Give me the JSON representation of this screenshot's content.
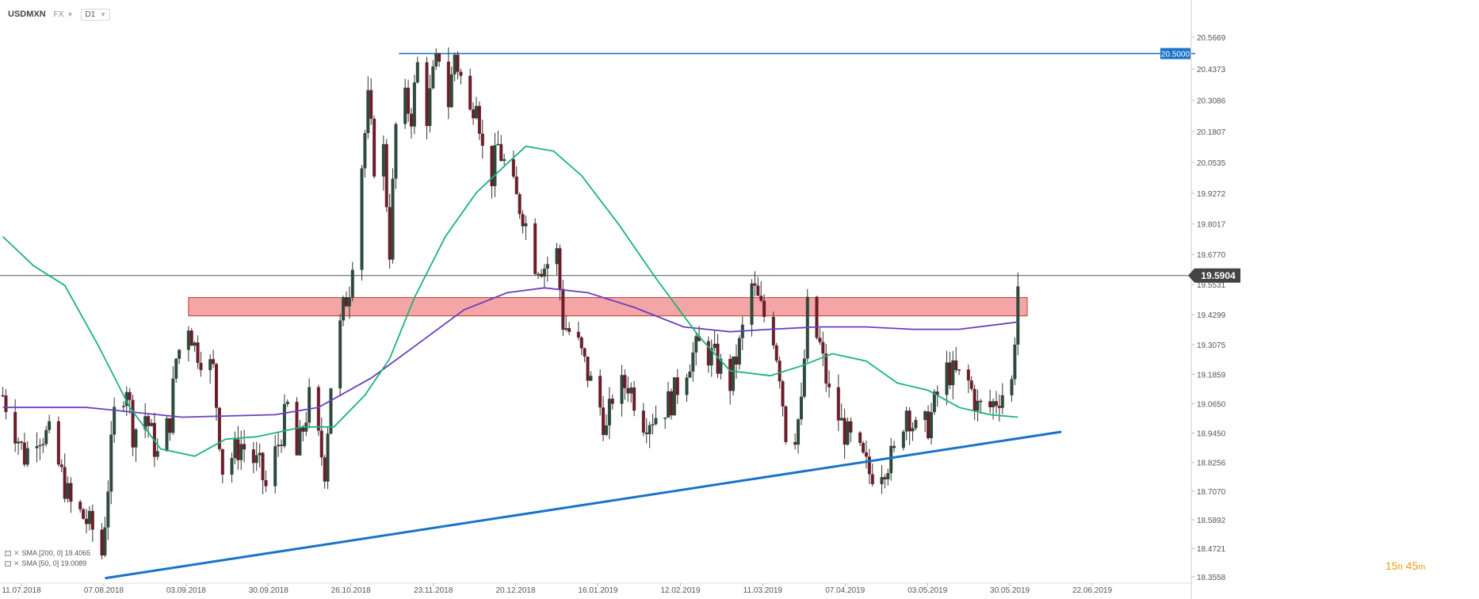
{
  "header": {
    "symbol": "USDMXN",
    "market": "FX",
    "timeframe": "D1"
  },
  "colors": {
    "bull": "#2e4a3a",
    "bear": "#6b1e2a",
    "sma50": "#19b37d",
    "sma200": "#6a3fbf",
    "trendline": "#1a73c8",
    "resistance_line": "#1a73c8",
    "zone_fill": "#f08080",
    "zone_stroke": "#c0392b",
    "price_line": "#555555",
    "price_tag": "#444444",
    "countdown": "#f39c12"
  },
  "price_tag": "19.5904",
  "level_tag": "20.5000",
  "legend": [
    {
      "text": "SMA [200, 0] 19.4065"
    },
    {
      "text": "SMA [50, 0] 19.0089"
    }
  ],
  "countdown": {
    "hours": "15",
    "h": "h",
    "minutes": "45",
    "m": "m"
  },
  "chart_data": {
    "type": "candlestick",
    "symbol": "USDMXN",
    "ylim": [
      18.3558,
      20.5669
    ],
    "y_ticks": [
      "20.5669",
      "20.4373",
      "20.3086",
      "20.1807",
      "20.0535",
      "19.9272",
      "19.8017",
      "19.6770",
      "19.5531",
      "19.4299",
      "19.3075",
      "19.1859",
      "19.0650",
      "18.9450",
      "18.8256",
      "18.7070",
      "18.5892",
      "18.4721",
      "18.3558"
    ],
    "x_ticks": [
      "11.07.2018",
      "07.08.2018",
      "03.09.2018",
      "30.09.2018",
      "26.10.2018",
      "23.11.2018",
      "20.12.2018",
      "16.01.2019",
      "12.02.2019",
      "11.03.2019",
      "07.04.2019",
      "03.05.2019",
      "30.05.2019",
      "22.06.2019"
    ],
    "current_price": 19.5904,
    "resistance_level": 20.5,
    "zone": [
      19.425,
      19.5
    ],
    "anchors": [
      [
        "2018-07-05",
        19.1
      ],
      [
        "2018-07-12",
        18.85
      ],
      [
        "2018-07-16",
        18.95
      ],
      [
        "2018-07-20",
        18.93
      ],
      [
        "2018-07-27",
        18.65
      ],
      [
        "2018-07-31",
        18.6
      ],
      [
        "2018-08-03",
        18.55
      ],
      [
        "2018-08-06",
        18.45
      ],
      [
        "2018-08-10",
        19.02
      ],
      [
        "2018-08-14",
        19.15
      ],
      [
        "2018-08-16",
        18.95
      ],
      [
        "2018-08-20",
        19.02
      ],
      [
        "2018-08-24",
        18.85
      ],
      [
        "2018-08-28",
        19.0
      ],
      [
        "2018-08-30",
        19.25
      ],
      [
        "2018-09-03",
        19.4
      ],
      [
        "2018-09-05",
        19.3
      ],
      [
        "2018-09-11",
        19.2
      ],
      [
        "2018-09-14",
        18.8
      ],
      [
        "2018-09-20",
        18.9
      ],
      [
        "2018-09-26",
        18.8
      ],
      [
        "2018-09-28",
        18.72
      ],
      [
        "2018-10-03",
        18.95
      ],
      [
        "2018-10-05",
        19.05
      ],
      [
        "2018-10-08",
        18.85
      ],
      [
        "2018-10-12",
        19.08
      ],
      [
        "2018-10-17",
        18.8
      ],
      [
        "2018-10-19",
        19.15
      ],
      [
        "2018-10-23",
        19.45
      ],
      [
        "2018-10-25",
        19.55
      ],
      [
        "2018-10-29",
        20.05
      ],
      [
        "2018-10-31",
        20.3
      ],
      [
        "2018-11-02",
        20.05
      ],
      [
        "2018-11-05",
        20.1
      ],
      [
        "2018-11-07",
        19.7
      ],
      [
        "2018-11-09",
        20.2
      ],
      [
        "2018-11-12",
        20.3
      ],
      [
        "2018-11-14",
        20.25
      ],
      [
        "2018-11-16",
        20.45
      ],
      [
        "2018-11-19",
        20.25
      ],
      [
        "2018-11-21",
        20.4
      ],
      [
        "2018-11-23",
        20.5
      ],
      [
        "2018-11-26",
        20.3
      ],
      [
        "2018-11-28",
        20.5
      ],
      [
        "2018-11-30",
        20.4
      ],
      [
        "2018-12-03",
        20.25
      ],
      [
        "2018-12-05",
        20.35
      ],
      [
        "2018-12-07",
        20.1
      ],
      [
        "2018-12-10",
        20.0
      ],
      [
        "2018-12-12",
        20.12
      ],
      [
        "2018-12-14",
        20.05
      ],
      [
        "2018-12-18",
        19.9
      ],
      [
        "2018-12-20",
        19.85
      ],
      [
        "2018-12-24",
        19.65
      ],
      [
        "2018-12-27",
        19.63
      ],
      [
        "2018-12-31",
        19.68
      ],
      [
        "2019-01-02",
        19.4
      ],
      [
        "2019-01-07",
        19.3
      ],
      [
        "2019-01-11",
        19.15
      ],
      [
        "2019-01-14",
        19.05
      ],
      [
        "2019-01-16",
        18.95
      ],
      [
        "2019-01-18",
        19.1
      ],
      [
        "2019-01-23",
        19.15
      ],
      [
        "2019-01-28",
        19.0
      ],
      [
        "2019-02-01",
        19.02
      ],
      [
        "2019-02-06",
        19.08
      ],
      [
        "2019-02-12",
        19.25
      ],
      [
        "2019-02-15",
        19.3
      ],
      [
        "2019-02-20",
        19.25
      ],
      [
        "2019-02-25",
        19.15
      ],
      [
        "2019-02-28",
        19.3
      ],
      [
        "2019-03-04",
        19.55
      ],
      [
        "2019-03-07",
        19.45
      ],
      [
        "2019-03-11",
        19.35
      ],
      [
        "2019-03-13",
        19.2
      ],
      [
        "2019-03-15",
        18.95
      ],
      [
        "2019-03-18",
        18.95
      ],
      [
        "2019-03-20",
        19.05
      ],
      [
        "2019-03-22",
        19.45
      ],
      [
        "2019-03-26",
        19.3
      ],
      [
        "2019-03-29",
        19.1
      ],
      [
        "2019-04-03",
        18.95
      ],
      [
        "2019-04-08",
        18.85
      ],
      [
        "2019-04-11",
        18.78
      ],
      [
        "2019-04-16",
        18.82
      ],
      [
        "2019-04-19",
        18.85
      ],
      [
        "2019-04-23",
        19.05
      ],
      [
        "2019-04-26",
        18.95
      ],
      [
        "2019-04-30",
        18.98
      ],
      [
        "2019-05-03",
        19.1
      ],
      [
        "2019-05-06",
        19.2
      ],
      [
        "2019-05-09",
        19.18
      ],
      [
        "2019-05-13",
        19.15
      ],
      [
        "2019-05-16",
        19.05
      ],
      [
        "2019-05-20",
        19.05
      ],
      [
        "2019-05-23",
        19.1
      ],
      [
        "2019-05-27",
        19.15
      ],
      [
        "2019-05-29",
        19.55
      ]
    ],
    "series": [
      {
        "name": "SMA [200, 0] 19.4065",
        "points": [
          [
            "2018-07-05",
            19.05
          ],
          [
            "2018-08-01",
            19.05
          ],
          [
            "2018-09-01",
            19.01
          ],
          [
            "2018-10-01",
            19.02
          ],
          [
            "2018-10-15",
            19.05
          ],
          [
            "2018-11-01",
            19.17
          ],
          [
            "2018-11-15",
            19.3
          ],
          [
            "2018-12-01",
            19.45
          ],
          [
            "2018-12-15",
            19.52
          ],
          [
            "2018-12-27",
            19.54
          ],
          [
            "2019-01-10",
            19.52
          ],
          [
            "2019-01-25",
            19.46
          ],
          [
            "2019-02-10",
            19.38
          ],
          [
            "2019-02-25",
            19.36
          ],
          [
            "2019-03-10",
            19.37
          ],
          [
            "2019-03-25",
            19.38
          ],
          [
            "2019-04-10",
            19.38
          ],
          [
            "2019-04-25",
            19.37
          ],
          [
            "2019-05-10",
            19.37
          ],
          [
            "2019-05-29",
            19.4
          ]
        ]
      },
      {
        "name": "SMA [50, 0] 19.0089",
        "points": [
          [
            "2018-07-05",
            19.75
          ],
          [
            "2018-07-15",
            19.63
          ],
          [
            "2018-07-25",
            19.55
          ],
          [
            "2018-08-05",
            19.3
          ],
          [
            "2018-08-15",
            19.05
          ],
          [
            "2018-08-25",
            18.88
          ],
          [
            "2018-09-05",
            18.85
          ],
          [
            "2018-09-15",
            18.92
          ],
          [
            "2018-09-25",
            18.93
          ],
          [
            "2018-10-10",
            18.97
          ],
          [
            "2018-10-20",
            18.97
          ],
          [
            "2018-10-30",
            19.1
          ],
          [
            "2018-11-07",
            19.25
          ],
          [
            "2018-11-15",
            19.5
          ],
          [
            "2018-11-25",
            19.75
          ],
          [
            "2018-12-05",
            19.93
          ],
          [
            "2018-12-15",
            20.05
          ],
          [
            "2018-12-21",
            20.12
          ],
          [
            "2018-12-30",
            20.1
          ],
          [
            "2019-01-08",
            20.0
          ],
          [
            "2019-01-20",
            19.8
          ],
          [
            "2019-02-01",
            19.58
          ],
          [
            "2019-02-15",
            19.34
          ],
          [
            "2019-02-25",
            19.2
          ],
          [
            "2019-03-10",
            19.18
          ],
          [
            "2019-03-20",
            19.22
          ],
          [
            "2019-03-30",
            19.27
          ],
          [
            "2019-04-10",
            19.24
          ],
          [
            "2019-04-20",
            19.15
          ],
          [
            "2019-04-30",
            19.12
          ],
          [
            "2019-05-10",
            19.05
          ],
          [
            "2019-05-20",
            19.02
          ],
          [
            "2019-05-29",
            19.01
          ]
        ]
      }
    ],
    "trendline": [
      [
        "2018-08-07",
        18.35
      ],
      [
        "2019-06-12",
        18.95
      ]
    ]
  }
}
